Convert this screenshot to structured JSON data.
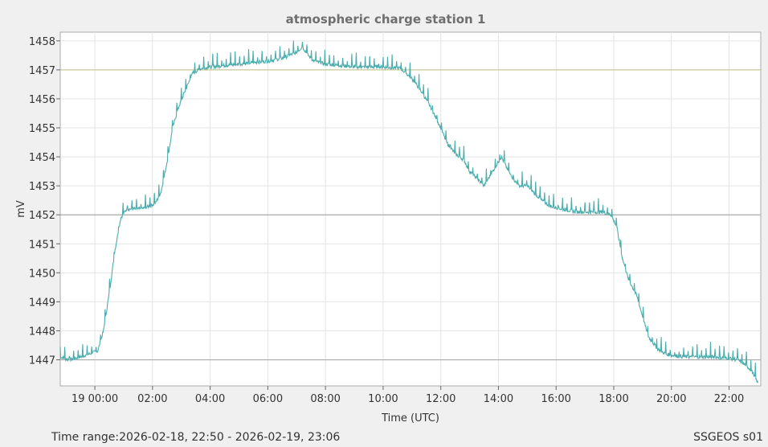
{
  "chart_data": {
    "type": "line",
    "title": "atmospheric charge station 1",
    "xlabel": "Time (UTC)",
    "ylabel": "mV",
    "x_tick_labels": [
      "19 00:00",
      "02:00",
      "04:00",
      "06:00",
      "08:00",
      "10:00",
      "12:00",
      "14:00",
      "16:00",
      "18:00",
      "20:00",
      "22:00"
    ],
    "x_tick_hours": [
      0,
      2,
      4,
      6,
      8,
      10,
      12,
      14,
      16,
      18,
      20,
      22
    ],
    "xlim_hours": [
      -1.2,
      23.1
    ],
    "y_ticks": [
      1447,
      1448,
      1449,
      1450,
      1451,
      1452,
      1453,
      1454,
      1455,
      1456,
      1457,
      1458
    ],
    "ylim": [
      1446.1,
      1458.3
    ],
    "reference_lines": [
      {
        "value": 1457,
        "color": "#c8c896"
      },
      {
        "value": 1452,
        "color": "#aaaaaa"
      },
      {
        "value": 1447,
        "color": "#aaaaaa"
      }
    ],
    "grid": true,
    "line_color": "#4aacac",
    "series": [
      {
        "x_hours": [
          -1.2,
          -0.9,
          -0.5,
          -0.2,
          0.1,
          0.3,
          0.5,
          0.7,
          0.9,
          1.1,
          1.3,
          1.6,
          1.9,
          2.1,
          2.3,
          2.5,
          2.7,
          2.9,
          3.1,
          3.4,
          3.7,
          4.0,
          4.5,
          5,
          6,
          6.5,
          7,
          7.2,
          7.4,
          7.6,
          8,
          9,
          10,
          10.6,
          11,
          11.3,
          11.6,
          12,
          12.2,
          12.5,
          12.8,
          13,
          13.3,
          13.5,
          13.8,
          14.1,
          14.4,
          14.7,
          15,
          15.2,
          15.5,
          15.8,
          16.2,
          16.7,
          17.2,
          17.6,
          17.9,
          18.1,
          18.3,
          18.5,
          18.8,
          19,
          19.2,
          19.5,
          19.8,
          20,
          20.5,
          21,
          21.5,
          22,
          22.3,
          22.6,
          22.8,
          23.0
        ],
        "values": [
          1447.1,
          1447.0,
          1447.1,
          1447.2,
          1447.3,
          1448.0,
          1449.3,
          1450.8,
          1451.9,
          1452.2,
          1452.2,
          1452.2,
          1452.3,
          1452.4,
          1452.8,
          1453.8,
          1455.0,
          1455.7,
          1456.2,
          1456.9,
          1457.05,
          1457.1,
          1457.15,
          1457.2,
          1457.3,
          1457.4,
          1457.6,
          1457.8,
          1457.5,
          1457.3,
          1457.2,
          1457.1,
          1457.1,
          1457.05,
          1456.7,
          1456.3,
          1455.8,
          1455.0,
          1454.5,
          1454.1,
          1453.9,
          1453.5,
          1453.2,
          1453.0,
          1453.5,
          1454.0,
          1453.4,
          1453.0,
          1453.0,
          1452.8,
          1452.5,
          1452.3,
          1452.2,
          1452.1,
          1452.1,
          1452.1,
          1452.0,
          1451.6,
          1450.5,
          1449.8,
          1449.2,
          1448.5,
          1447.8,
          1447.4,
          1447.2,
          1447.15,
          1447.1,
          1447.1,
          1447.1,
          1447.05,
          1447.0,
          1446.8,
          1446.6,
          1446.2
        ]
      }
    ]
  },
  "footer": {
    "time_range": "Time range:2026-02-18, 22:50 - 2026-02-19, 23:06",
    "station": "SSGEOS s01"
  }
}
